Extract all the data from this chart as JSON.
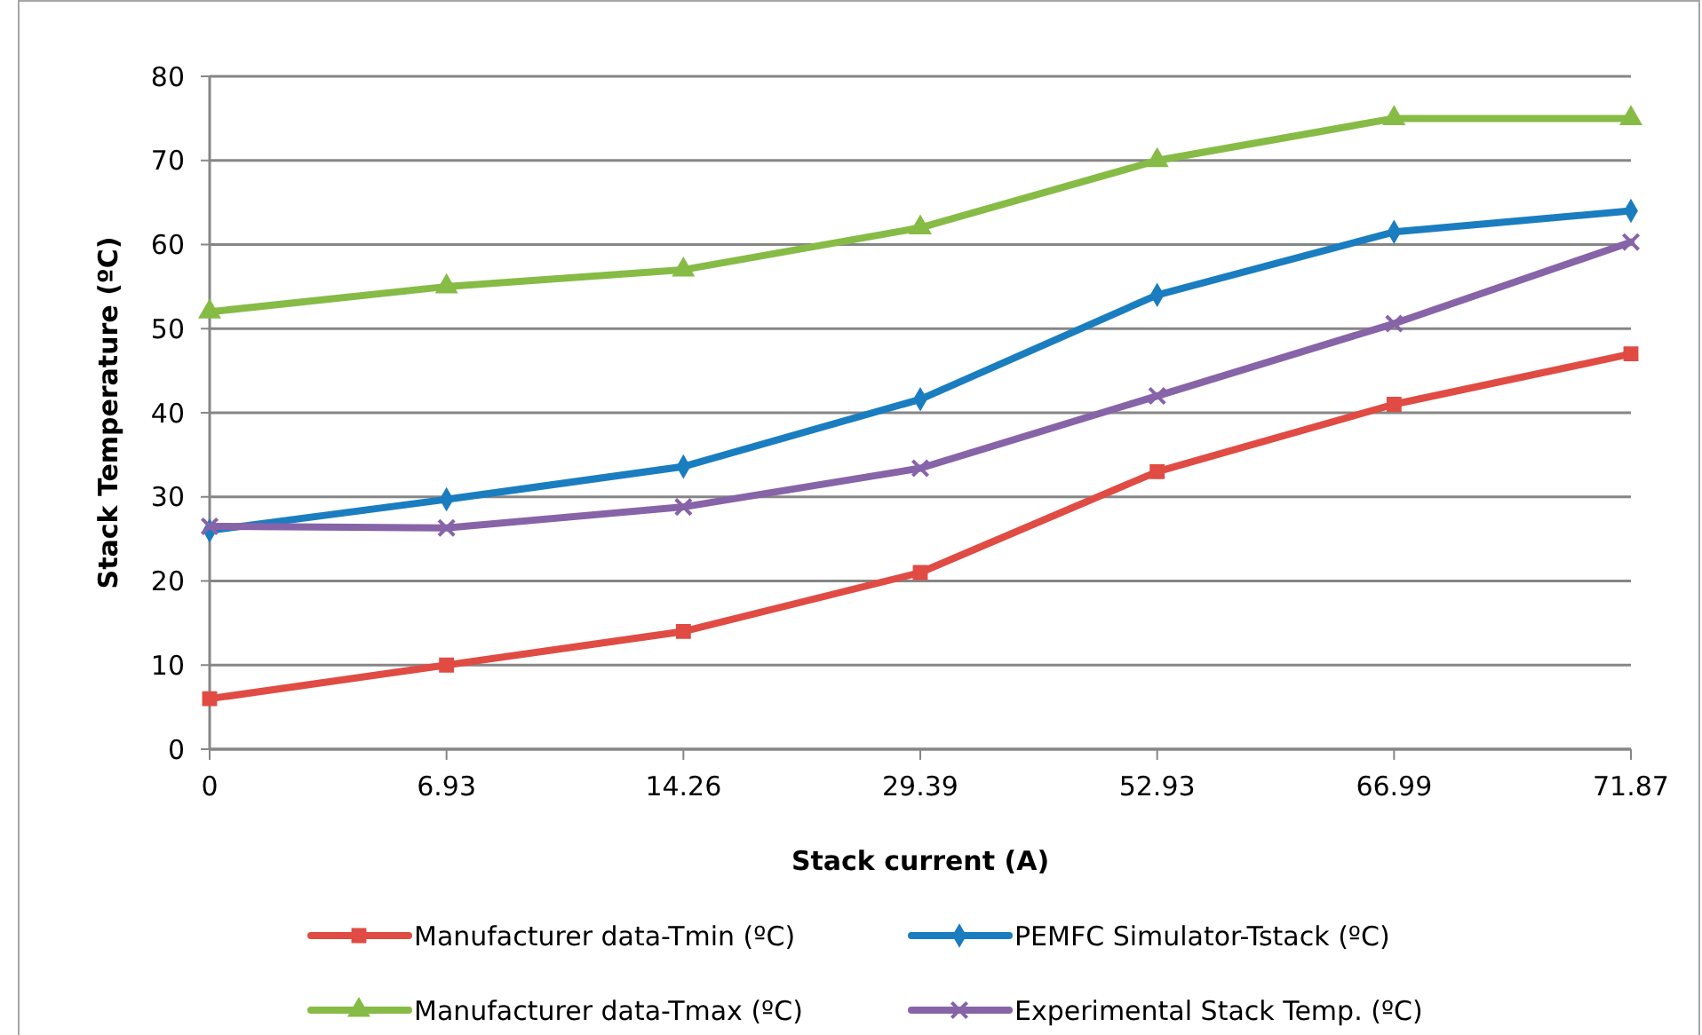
{
  "chart_data": {
    "type": "line",
    "xlabel": "Stack current (A)",
    "ylabel": "Stack Temperature (ºC)",
    "categories": [
      "0",
      "6.93",
      "14.26",
      "29.39",
      "52.93",
      "66.99",
      "71.87"
    ],
    "series": [
      {
        "name": "Manufacturer data-Tmin (ºC)",
        "color": "#e04b43",
        "marker": "square",
        "values": [
          6,
          10,
          14,
          21,
          33,
          41,
          47
        ]
      },
      {
        "name": "PEMFC Simulator-Tstack (ºC)",
        "color": "#1a7dc0",
        "marker": "diamond",
        "values": [
          26,
          29.7,
          33.6,
          41.6,
          54,
          61.5,
          64
        ]
      },
      {
        "name": "Manufacturer data-Tmax (ºC)",
        "color": "#86bb46",
        "marker": "triangle",
        "values": [
          52,
          55,
          57,
          62,
          70,
          75,
          75
        ]
      },
      {
        "name": "Experimental Stack Temp. (ºC)",
        "color": "#8763a8",
        "marker": "cross",
        "values": [
          26.5,
          26.3,
          28.8,
          33.4,
          42,
          50.6,
          60.3
        ]
      }
    ],
    "ylim": [
      0,
      80
    ],
    "yticks": [
      0,
      10,
      20,
      30,
      40,
      50,
      60,
      70,
      80
    ],
    "grid": "y",
    "legend": "bottom",
    "line_style": "solid"
  }
}
